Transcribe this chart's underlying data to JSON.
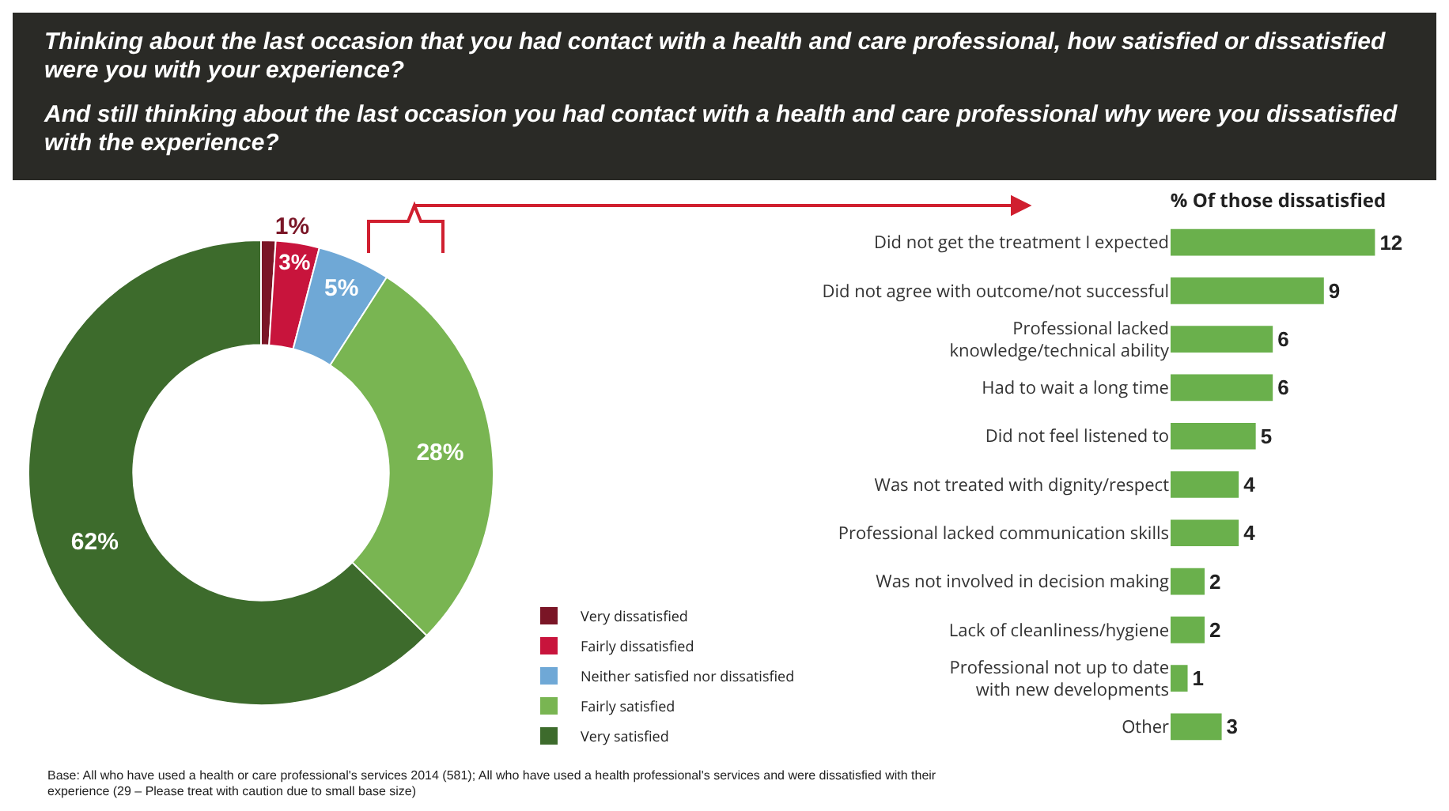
{
  "chart_data": [
    {
      "type": "donut",
      "title": "Thinking about the last occasion that you had contact with a health and care professional, how satisfied or dissatisfied were you with your experience?",
      "categories": [
        "Very dissatisfied",
        "Fairly dissatisfied",
        "Neither satisfied nor dissatisfied",
        "Fairly satisfied",
        "Very satisfied"
      ],
      "values": [
        1,
        3,
        5,
        28,
        62
      ],
      "colors": [
        "#7a1526",
        "#c8143c",
        "#6fa8d6",
        "#79b552",
        "#3d6b2c"
      ],
      "value_labels": [
        "1%",
        "3%",
        "5%",
        "28%",
        "62%"
      ],
      "legend": "bottom right",
      "annotations": [
        "Base: All who have used a health or care professional's services 2014 (581); All who have used a health professional's services and were dissatisfied with their experience (29 – Please treat with caution due to small base size)"
      ]
    },
    {
      "type": "bar",
      "orientation": "horizontal",
      "title": "And still thinking about the last occasion you had contact with a health and care professional why were you dissatisfied with the experience?",
      "xlabel": "% Of those dissatisfied",
      "categories": [
        "Did not get the treatment I expected",
        "Did not agree with outcome/not successful",
        "Professional lacked knowledge/technical ability",
        "Had to wait a long time",
        "Did not feel listened to",
        "Was not treated with dignity/respect",
        "Professional lacked communication skills",
        "Was not involved in decision making",
        "Lack of cleanliness/hygiene",
        "Professional not up to date with new developments",
        "Other"
      ],
      "values": [
        12,
        9,
        6,
        6,
        5,
        4,
        4,
        2,
        2,
        1,
        3
      ],
      "color": "#6ab04c",
      "data_labels": true,
      "tick_labels": "y",
      "grid": false,
      "legend": false
    }
  ]
}
